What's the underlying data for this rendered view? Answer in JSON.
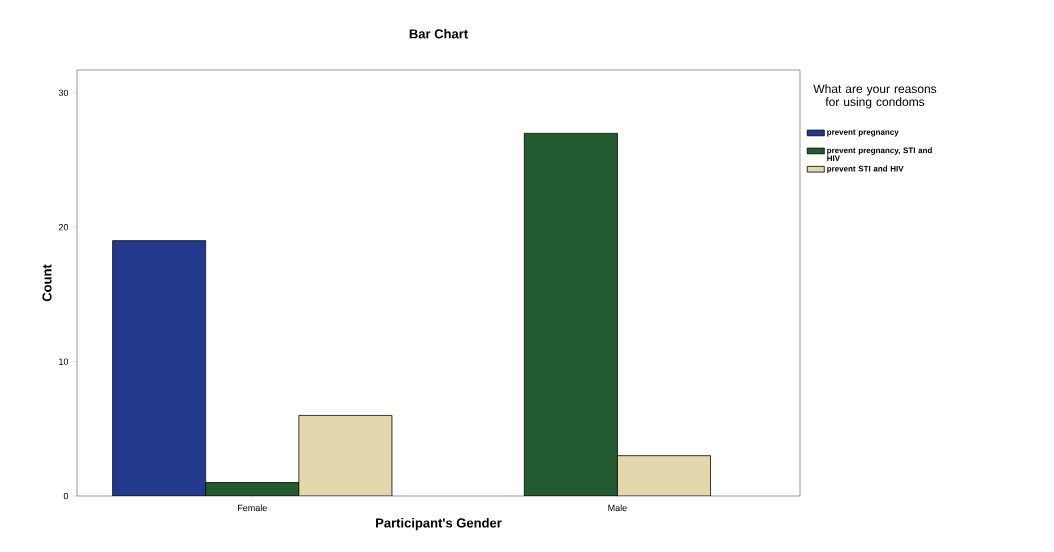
{
  "chart_data": {
    "type": "bar",
    "title": "Bar Chart",
    "xlabel": "Participant's Gender",
    "ylabel": "Count",
    "legend_title": "What are your reasons for using condoms",
    "categories": [
      "Female",
      "Male"
    ],
    "series": [
      {
        "name": "prevent pregnancy",
        "color": "#233a8c",
        "values": [
          19,
          null
        ]
      },
      {
        "name": "prevent pregnancy, STI and HIV",
        "color": "#235a30",
        "values": [
          1,
          27
        ]
      },
      {
        "name": "prevent STI and HIV",
        "color": "#e3d7ad",
        "values": [
          6,
          3
        ]
      }
    ],
    "ylim": [
      0,
      31.7
    ],
    "yticks": [
      0,
      10,
      20,
      30
    ],
    "legend": "right"
  }
}
